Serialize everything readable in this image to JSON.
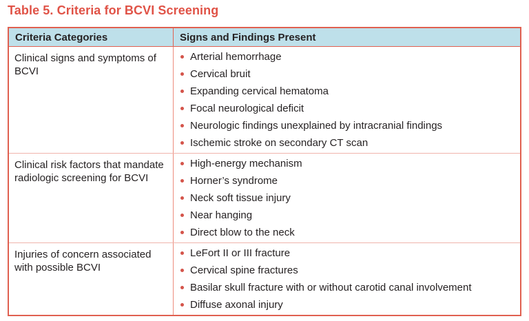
{
  "title": "Table 5. Criteria for BCVI Screening",
  "colors": {
    "title": "#e05347",
    "header_background": "#bee0ea",
    "border": "#e06050",
    "row_divider": "#f0b3ab",
    "column_divider": "#ec8c7d",
    "bullet": "#d4544a",
    "text": "#262223"
  },
  "table": {
    "headers": [
      "Criteria Categories",
      "Signs and Findings Present"
    ],
    "rows": [
      {
        "category": "Clinical signs and symptoms of BCVI",
        "findings": [
          "Arterial hemorrhage",
          "Cervical bruit",
          "Expanding cervical hematoma",
          "Focal neurological deficit",
          "Neurologic findings unexplained by intracranial findings",
          "Ischemic stroke on secondary CT scan"
        ]
      },
      {
        "category": "Clinical risk factors that mandate radiologic screening for BCVI",
        "findings": [
          "High-energy mechanism",
          "Horner’s syndrome",
          "Neck soft tissue injury",
          "Near hanging",
          "Direct blow to the neck"
        ]
      },
      {
        "category": "Injuries of concern associated with possible BCVI",
        "findings": [
          "LeFort II or III fracture",
          "Cervical spine fractures",
          "Basilar skull fracture with or without carotid canal involvement",
          "Diffuse axonal injury"
        ]
      }
    ]
  }
}
